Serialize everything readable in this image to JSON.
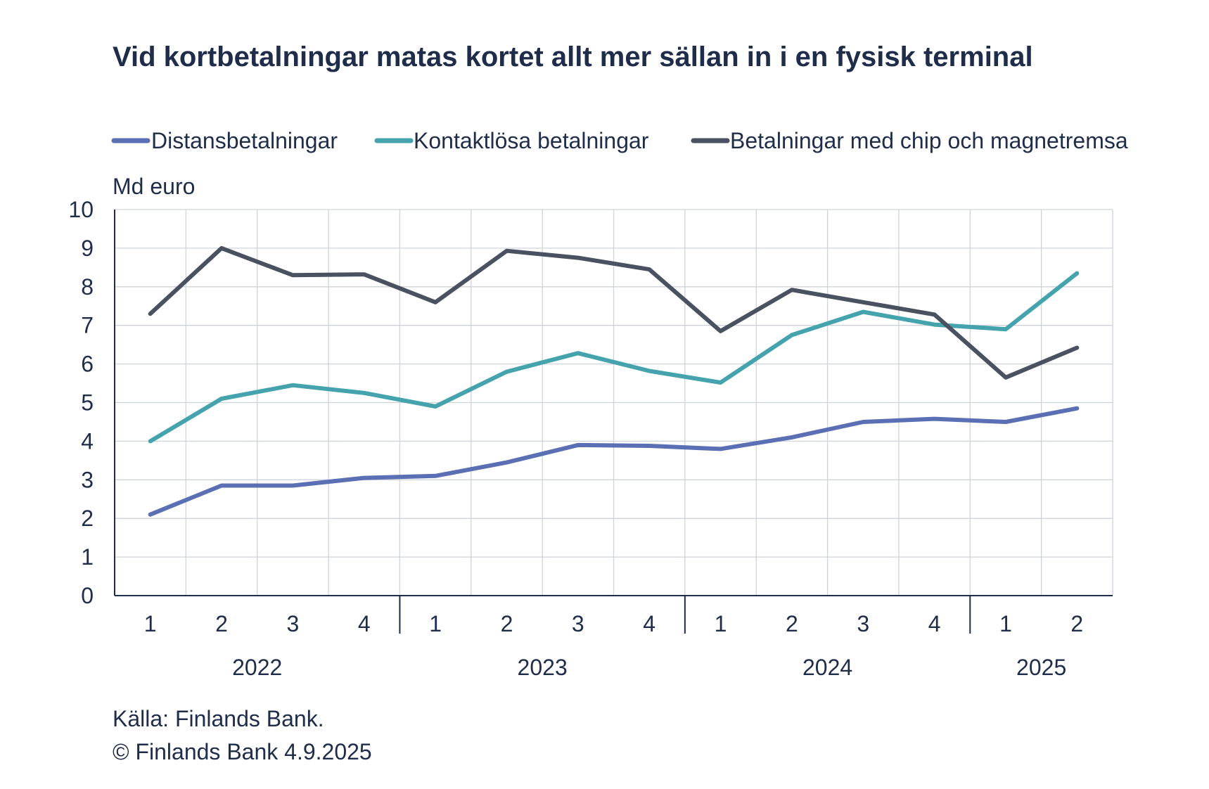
{
  "chart_data": {
    "type": "line",
    "title": "Vid kortbetalningar matas kortet allt mer sällan in i en fysisk terminal",
    "ylabel": "Md euro",
    "xlabel": "",
    "ylim": [
      0,
      10
    ],
    "yticks": [
      "0",
      "1",
      "2",
      "3",
      "4",
      "5",
      "6",
      "7",
      "8",
      "9",
      "10"
    ],
    "grid": true,
    "legend_position": "top",
    "categories": [
      "1",
      "2",
      "3",
      "4",
      "1",
      "2",
      "3",
      "4",
      "1",
      "2",
      "3",
      "4",
      "1",
      "2"
    ],
    "year_groups": [
      {
        "label": "2022",
        "count": 4
      },
      {
        "label": "2023",
        "count": 4
      },
      {
        "label": "2024",
        "count": 4
      },
      {
        "label": "2025",
        "count": 2
      }
    ],
    "series": [
      {
        "name": "Distansbetalningar",
        "color": "#5b6fb4",
        "values": [
          2.1,
          2.85,
          2.85,
          3.05,
          3.1,
          3.45,
          3.9,
          3.88,
          3.8,
          4.1,
          4.5,
          4.58,
          4.5,
          4.85
        ]
      },
      {
        "name": "Kontaktlösa betalningar",
        "color": "#44a3ad",
        "values": [
          4.0,
          5.1,
          5.45,
          5.25,
          4.9,
          5.8,
          6.28,
          5.82,
          5.52,
          6.75,
          7.35,
          7.02,
          6.9,
          8.35
        ]
      },
      {
        "name": "Betalningar med chip och magnetremsa",
        "color": "#4a5160",
        "values": [
          7.3,
          9.0,
          8.3,
          8.32,
          7.6,
          8.93,
          8.75,
          8.45,
          6.85,
          7.92,
          7.6,
          7.28,
          5.65,
          6.42
        ]
      }
    ]
  },
  "footer": {
    "source": "Källa: Finlands Bank.",
    "copyright": "© Finlands Bank 4.9.2025"
  }
}
